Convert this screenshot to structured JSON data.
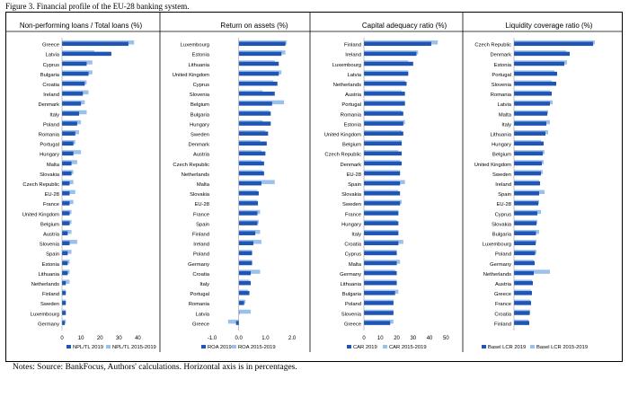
{
  "figure_title": "Figure 3. Financial profile of the EU-28 banking system.",
  "notes": "Notes: Source: BankFocus, Authors' calculations. Horizontal axis is in percentages.",
  "colors": {
    "dark": "#1f55b5",
    "light": "#9cc0ec"
  },
  "chart_data": [
    {
      "type": "bar",
      "orientation": "horizontal",
      "title": "Non-performing loans / Total loans (%)",
      "categories": [
        "Greece",
        "Latvia",
        "Cyprus",
        "Bulgaria",
        "Croatia",
        "Ireland",
        "Denmark",
        "Italy",
        "Poland",
        "Romania",
        "Portugal",
        "Hungary",
        "Malta",
        "Slovakia",
        "Czech Republic",
        "EU-28",
        "France",
        "United Kingdom",
        "Belgium",
        "Austria",
        "Slovenia",
        "Spain",
        "Estonia",
        "Lithuania",
        "Netherlands",
        "Finland",
        "Sweden",
        "Luxembourg",
        "Germany"
      ],
      "series": [
        {
          "name": "NPL/TL 2019",
          "values": [
            35,
            26,
            13,
            14,
            12,
            11,
            10,
            9,
            8,
            7,
            6,
            6,
            5,
            5,
            4,
            4,
            4,
            4,
            4,
            3,
            4,
            3,
            3,
            3,
            2,
            2,
            2,
            2,
            1.5
          ]
        },
        {
          "name": "NPL/TL 2015-2019",
          "values": [
            38,
            17,
            16,
            16,
            13,
            14,
            12,
            13,
            10,
            9,
            7,
            10,
            8,
            6,
            6,
            7,
            6,
            5,
            5,
            5,
            8,
            5,
            4,
            4,
            4,
            2,
            2,
            2,
            2
          ]
        }
      ],
      "ticks": [
        0,
        10,
        20,
        30,
        40
      ],
      "tick_labels": [
        "0",
        "10",
        "20",
        "30",
        "40"
      ],
      "xlim": [
        0,
        45
      ]
    },
    {
      "type": "bar",
      "orientation": "horizontal",
      "title": "Return on assets (%)",
      "categories": [
        "Luxembourg",
        "Estonia",
        "Lithuania",
        "United Kingdom",
        "Cyprus",
        "Slovenia",
        "Belgium",
        "Bulgaria",
        "Hungary",
        "Sweden",
        "Denmark",
        "Austria",
        "Czech Republic",
        "Netherlands",
        "Malta",
        "Slovakia",
        "EU-28",
        "France",
        "Spain",
        "Finland",
        "Ireland",
        "Poland",
        "Germany",
        "Croatia",
        "Italy",
        "Portugal",
        "Romania",
        "Latvia",
        "Greece"
      ],
      "series": [
        {
          "name": "ROA 2019",
          "values": [
            1.75,
            1.6,
            1.5,
            1.5,
            1.45,
            1.35,
            1.25,
            1.2,
            1.2,
            1.1,
            1.05,
            1.0,
            0.95,
            0.95,
            0.85,
            0.75,
            0.72,
            0.7,
            0.7,
            0.62,
            0.55,
            0.5,
            0.5,
            0.45,
            0.45,
            0.4,
            0.2,
            0.02,
            -0.1
          ]
        },
        {
          "name": "ROA 2015-2019",
          "values": [
            1.8,
            1.75,
            1.35,
            1.6,
            1.3,
            0.9,
            1.7,
            1.15,
            0.9,
            1.0,
            0.8,
            0.85,
            0.85,
            0.9,
            1.35,
            0.7,
            0.7,
            0.8,
            0.75,
            0.8,
            0.85,
            0.5,
            0.5,
            0.8,
            0.4,
            0.35,
            0.25,
            0.45,
            -0.4
          ]
        }
      ],
      "ticks": [
        -1,
        0,
        1,
        2
      ],
      "tick_labels": [
        "-1.0",
        "0.0",
        "1.0",
        "2.0"
      ],
      "xlim": [
        -1,
        2.2
      ]
    },
    {
      "type": "bar",
      "orientation": "horizontal",
      "title": "Capital adequacy ratio (%)",
      "categories": [
        "Finland",
        "Ireland",
        "Luxembourg",
        "Latvia",
        "Netherlands",
        "Austria",
        "Portugal",
        "Romania",
        "Estonia",
        "United Kingdom",
        "Belgium",
        "Czech Republic",
        "Denmark",
        "EU-28",
        "Spain",
        "Slovakia",
        "Sweden",
        "France",
        "Hungary",
        "Italy",
        "Croatia",
        "Cyprus",
        "Malta",
        "Germany",
        "Lithuania",
        "Bulgaria",
        "Poland",
        "Slovenia",
        "Greece"
      ],
      "series": [
        {
          "name": "CAR 2019",
          "values": [
            41,
            32,
            30,
            27,
            26,
            25,
            25,
            24,
            24,
            24,
            23,
            23,
            23,
            22,
            22,
            22,
            22,
            21,
            21,
            21,
            21,
            20,
            20,
            20,
            20,
            19,
            18,
            18,
            16
          ]
        },
        {
          "name": "CAR 2015-2019",
          "values": [
            45,
            33,
            27,
            27,
            25,
            23,
            25,
            23,
            25,
            23,
            23,
            21,
            22,
            22,
            25,
            21,
            23,
            21,
            20,
            21,
            24,
            20,
            22,
            19,
            20,
            21,
            18,
            18,
            18
          ]
        }
      ],
      "ticks": [
        0,
        10,
        20,
        30,
        40,
        50
      ],
      "tick_labels": [
        "0",
        "10",
        "20",
        "30",
        "40",
        "50"
      ],
      "xlim": [
        0,
        52
      ]
    },
    {
      "type": "bar",
      "orientation": "horizontal",
      "title": "Liquidity coverage ratio (%)",
      "categories": [
        "Czech Republic",
        "Denmark",
        "Estonia",
        "Portugal",
        "Slovenia",
        "Romania",
        "Latvia",
        "Malta",
        "Italy",
        "Lithuania",
        "Hungary",
        "Belgium",
        "United Kingdom",
        "Sweden",
        "Ireland",
        "Spain",
        "EU-28",
        "Cyprus",
        "Slovakia",
        "Bulgaria",
        "Luxembourg",
        "Poland",
        "Germany",
        "Netherlands",
        "Austria",
        "Greece",
        "France",
        "Croatia",
        "Finland"
      ],
      "series": [
        {
          "name": "Basel LCR 2019",
          "values": [
            880,
            620,
            560,
            480,
            470,
            420,
            400,
            370,
            360,
            350,
            330,
            320,
            310,
            300,
            290,
            280,
            270,
            260,
            250,
            245,
            240,
            235,
            230,
            220,
            210,
            200,
            190,
            175,
            170
          ]
        },
        {
          "name": "Basel LCR 2015-2019",
          "values": [
            900,
            580,
            590,
            450,
            420,
            400,
            430,
            380,
            400,
            380,
            300,
            340,
            330,
            320,
            280,
            340,
            280,
            300,
            260,
            280,
            250,
            250,
            220,
            400,
            200,
            190,
            180,
            180,
            160
          ]
        }
      ],
      "xlim": [
        0,
        950
      ]
    }
  ]
}
